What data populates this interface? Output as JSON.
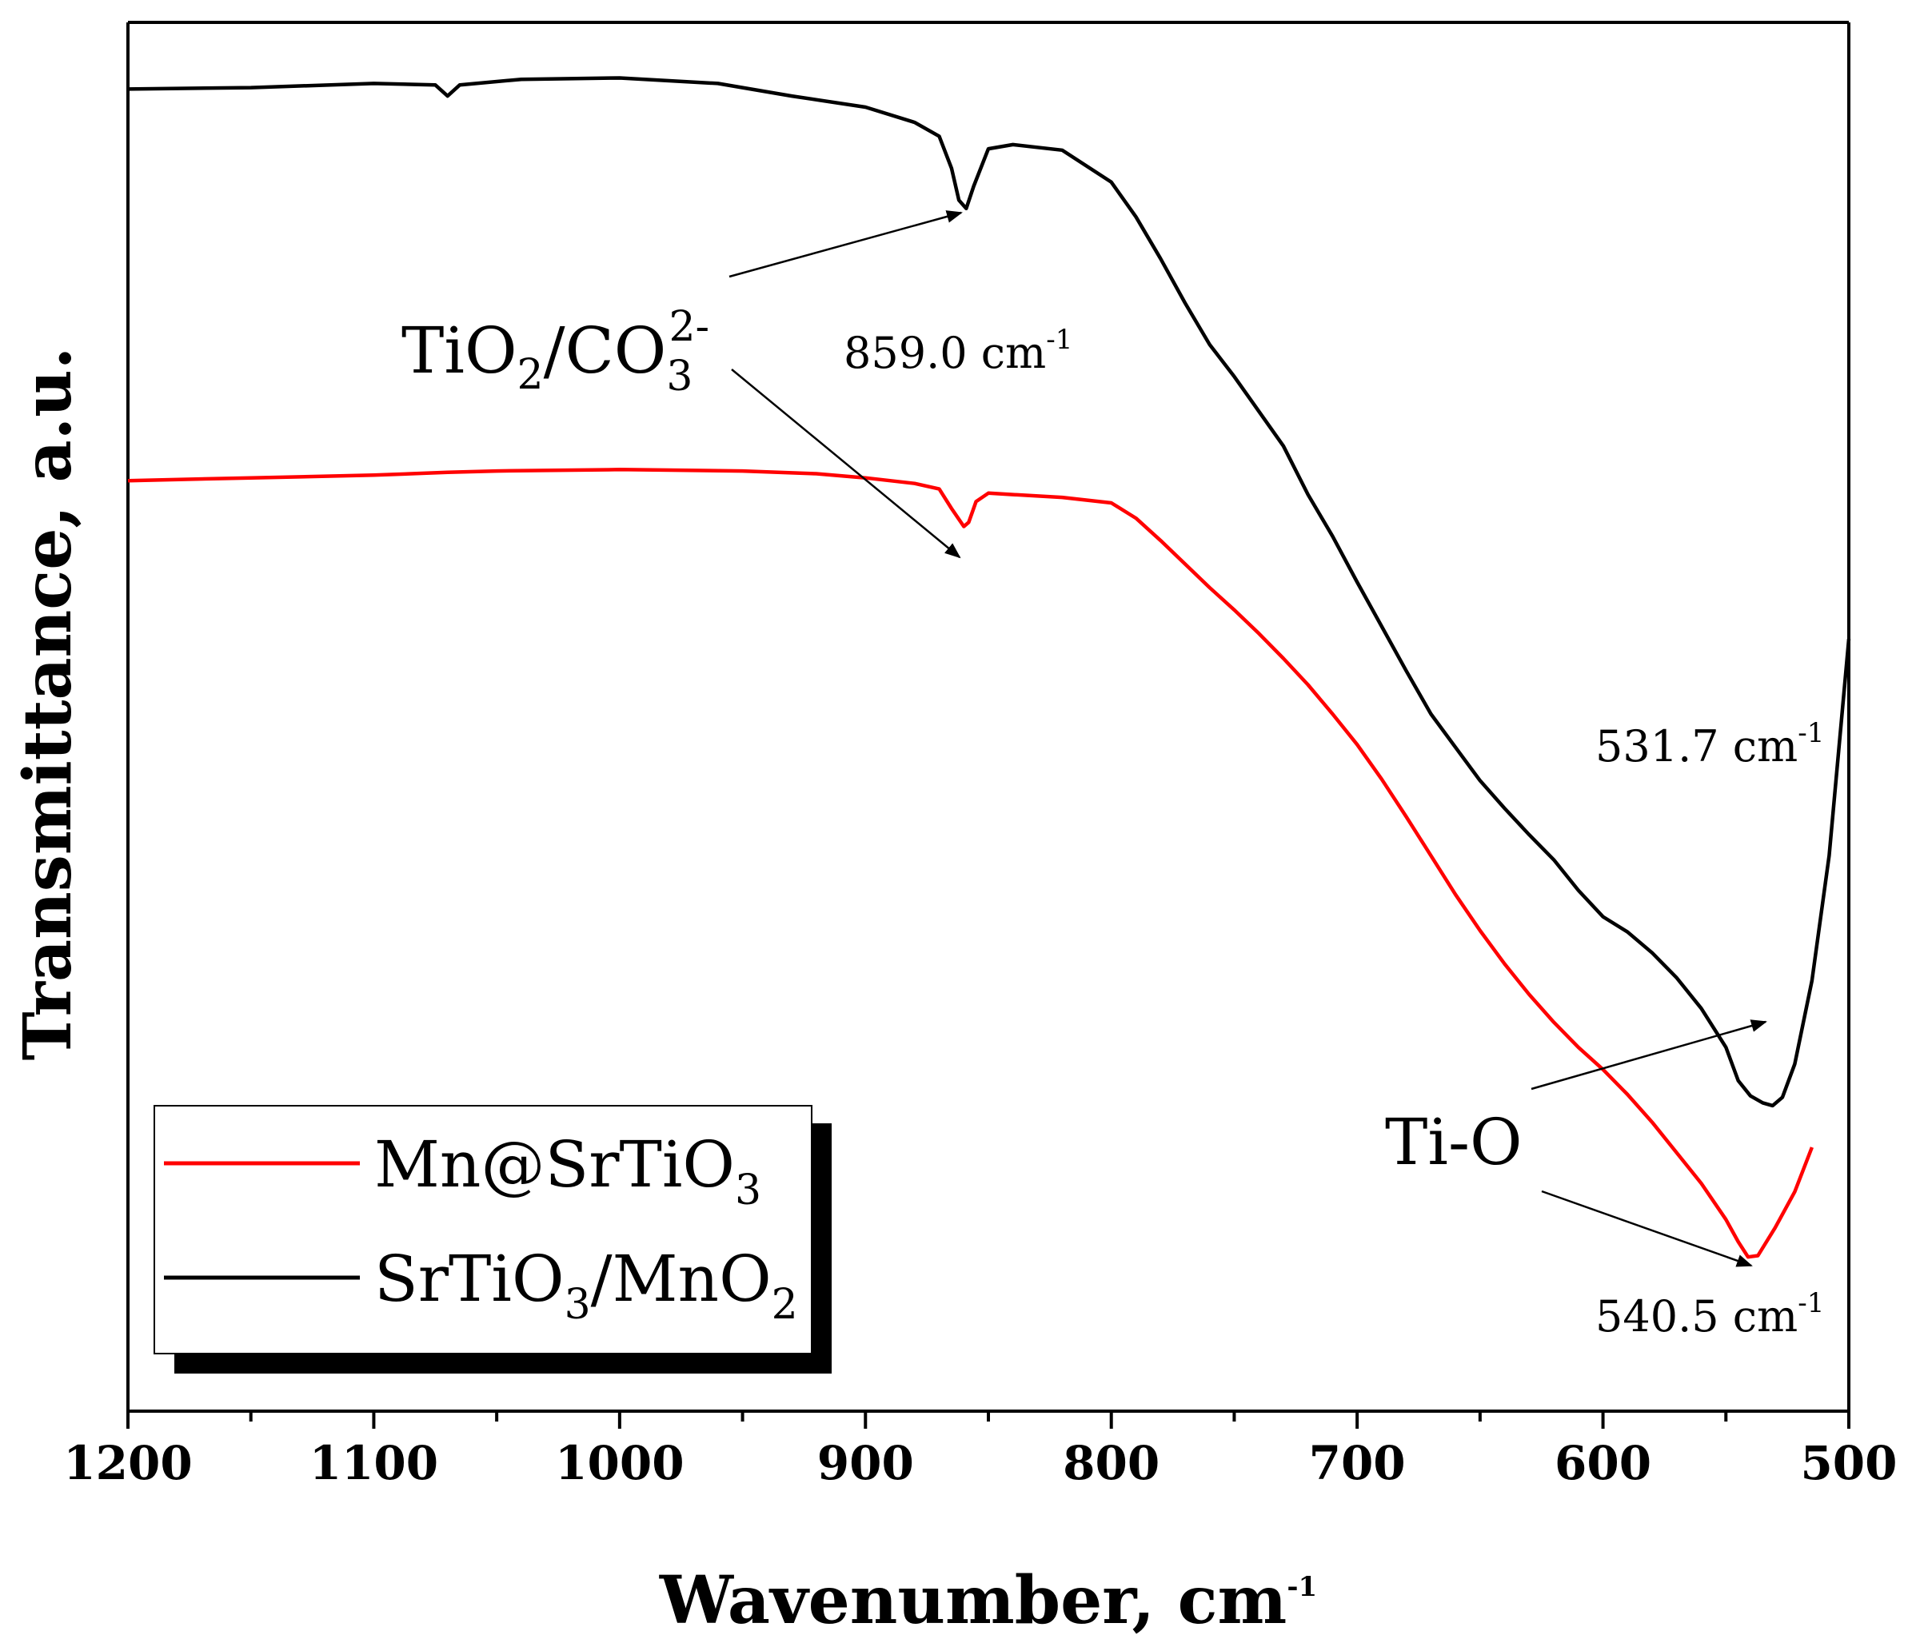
{
  "chart_data": {
    "type": "line",
    "title": "",
    "xlabel": "Wavenumber, cm",
    "xlabel_sup": "-1",
    "ylabel": "Transmittance, a.u.",
    "xlim": [
      1200,
      500
    ],
    "ylim": [
      0,
      1
    ],
    "x_ticks": [
      "1200",
      "1100",
      "1000",
      "900",
      "800",
      "700",
      "600",
      "500"
    ],
    "y_ticks": [],
    "grid": false,
    "legend_position": "bottom-left",
    "series": [
      {
        "name": "Mn@SrTiO3",
        "name_main": "Mn@SrTiO",
        "name_sub": "3",
        "color": "#ff0000",
        "points": [
          [
            1200,
            0.67
          ],
          [
            1150,
            0.672
          ],
          [
            1100,
            0.674
          ],
          [
            1070,
            0.676
          ],
          [
            1050,
            0.677
          ],
          [
            1000,
            0.678
          ],
          [
            950,
            0.677
          ],
          [
            920,
            0.675
          ],
          [
            900,
            0.672
          ],
          [
            880,
            0.668
          ],
          [
            870,
            0.664
          ],
          [
            865,
            0.65
          ],
          [
            860,
            0.637
          ],
          [
            858,
            0.64
          ],
          [
            855,
            0.655
          ],
          [
            850,
            0.661
          ],
          [
            840,
            0.66
          ],
          [
            820,
            0.658
          ],
          [
            800,
            0.654
          ],
          [
            790,
            0.643
          ],
          [
            780,
            0.627
          ],
          [
            770,
            0.61
          ],
          [
            760,
            0.593
          ],
          [
            750,
            0.577
          ],
          [
            740,
            0.56
          ],
          [
            730,
            0.542
          ],
          [
            720,
            0.523
          ],
          [
            710,
            0.502
          ],
          [
            700,
            0.48
          ],
          [
            690,
            0.455
          ],
          [
            680,
            0.428
          ],
          [
            670,
            0.4
          ],
          [
            660,
            0.372
          ],
          [
            650,
            0.346
          ],
          [
            640,
            0.322
          ],
          [
            630,
            0.3
          ],
          [
            620,
            0.28
          ],
          [
            610,
            0.262
          ],
          [
            600,
            0.246
          ],
          [
            590,
            0.228
          ],
          [
            580,
            0.208
          ],
          [
            570,
            0.186
          ],
          [
            560,
            0.164
          ],
          [
            550,
            0.138
          ],
          [
            545,
            0.122
          ],
          [
            541,
            0.111
          ],
          [
            537,
            0.112
          ],
          [
            530,
            0.132
          ],
          [
            522,
            0.158
          ],
          [
            515,
            0.19
          ]
        ]
      },
      {
        "name": "SrTiO3/MnO2",
        "name_main": "SrTiO",
        "name_sub": "3",
        "name_mid": "/MnO",
        "name_sub2": "2",
        "color": "#000000",
        "points": [
          [
            1200,
            0.952
          ],
          [
            1150,
            0.953
          ],
          [
            1100,
            0.956
          ],
          [
            1075,
            0.955
          ],
          [
            1070,
            0.947
          ],
          [
            1065,
            0.955
          ],
          [
            1040,
            0.959
          ],
          [
            1000,
            0.96
          ],
          [
            960,
            0.956
          ],
          [
            930,
            0.947
          ],
          [
            900,
            0.939
          ],
          [
            880,
            0.928
          ],
          [
            870,
            0.918
          ],
          [
            865,
            0.895
          ],
          [
            862,
            0.872
          ],
          [
            859,
            0.866
          ],
          [
            856,
            0.882
          ],
          [
            850,
            0.909
          ],
          [
            840,
            0.912
          ],
          [
            820,
            0.908
          ],
          [
            800,
            0.885
          ],
          [
            790,
            0.86
          ],
          [
            780,
            0.83
          ],
          [
            770,
            0.798
          ],
          [
            760,
            0.768
          ],
          [
            750,
            0.745
          ],
          [
            740,
            0.72
          ],
          [
            730,
            0.695
          ],
          [
            720,
            0.66
          ],
          [
            710,
            0.63
          ],
          [
            700,
            0.597
          ],
          [
            690,
            0.565
          ],
          [
            680,
            0.533
          ],
          [
            670,
            0.502
          ],
          [
            660,
            0.478
          ],
          [
            650,
            0.454
          ],
          [
            640,
            0.434
          ],
          [
            630,
            0.415
          ],
          [
            620,
            0.397
          ],
          [
            610,
            0.375
          ],
          [
            600,
            0.356
          ],
          [
            590,
            0.345
          ],
          [
            580,
            0.33
          ],
          [
            570,
            0.312
          ],
          [
            560,
            0.29
          ],
          [
            550,
            0.262
          ],
          [
            545,
            0.238
          ],
          [
            540,
            0.227
          ],
          [
            535,
            0.222
          ],
          [
            531,
            0.22
          ],
          [
            527,
            0.226
          ],
          [
            522,
            0.25
          ],
          [
            515,
            0.31
          ],
          [
            508,
            0.4
          ],
          [
            500,
            0.556
          ]
        ]
      }
    ],
    "annotations": {
      "group_carbonate": {
        "main": "TiO",
        "sub": "2",
        "mid": "/CO",
        "sub2": "3",
        "sup": "2-"
      },
      "group_tio": {
        "text": "Ti-O"
      },
      "peak_859": {
        "text": "859.0 cm",
        "sup": "-1",
        "x": 859.0
      },
      "peak_531": {
        "text": "531.7 cm",
        "sup": "-1",
        "x": 531.7
      },
      "peak_540": {
        "text": "540.5 cm",
        "sup": "-1",
        "x": 540.5
      }
    }
  }
}
